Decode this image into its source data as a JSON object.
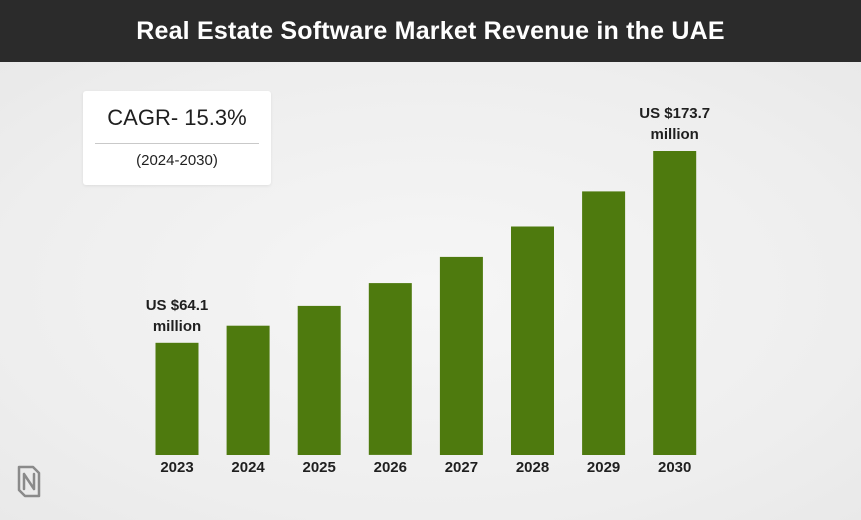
{
  "title": "Real Estate Software Market Revenue in the UAE",
  "cagr": {
    "value": "CAGR- 15.3%",
    "period": "(2024-2030)"
  },
  "colors": {
    "bar": "#4e7a0e",
    "title_bg": "#2b2b2b"
  },
  "chart_data": {
    "type": "bar",
    "title": "Real Estate Software Market Revenue in the UAE",
    "xlabel": "",
    "ylabel": "",
    "categories": [
      "2023",
      "2024",
      "2025",
      "2026",
      "2027",
      "2028",
      "2029",
      "2030"
    ],
    "values": [
      64.1,
      73.9,
      85.2,
      98.2,
      113.2,
      130.6,
      150.6,
      173.7
    ],
    "unit": "US $ million",
    "ylim": [
      0,
      200
    ],
    "data_labels": [
      {
        "index": 0,
        "lines": [
          "US $64.1",
          "million"
        ]
      },
      {
        "index": 7,
        "lines": [
          "US $173.7",
          "million"
        ]
      }
    ]
  }
}
